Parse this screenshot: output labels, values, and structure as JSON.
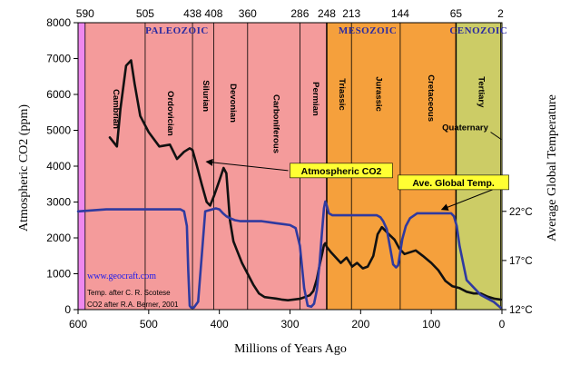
{
  "chart_data": {
    "type": "line",
    "xlabel": "Millions of Years Ago",
    "ylabel_left": "Atmospheric CO2 (ppm)",
    "ylabel_right": "Average Global Temperature",
    "xlim": [
      600,
      0
    ],
    "ylim_left": [
      0,
      8000
    ],
    "x_ticks": [
      "600",
      "500",
      "400",
      "300",
      "200",
      "100",
      "0"
    ],
    "y_ticks_left": [
      "0",
      "1000",
      "2000",
      "3000",
      "4000",
      "5000",
      "6000",
      "7000",
      "8000"
    ],
    "y_ticks_right": [
      {
        "label": "12°C",
        "temp": 12
      },
      {
        "label": "17°C",
        "temp": 17
      },
      {
        "label": "22°C",
        "temp": 22
      }
    ],
    "temp_axis": {
      "t_min": 12,
      "t_max": 22,
      "ppm_at_min": 0,
      "ppm_at_max": 2740
    },
    "period_boundaries": [
      {
        "label": "590",
        "x": 590
      },
      {
        "label": "505",
        "x": 505
      },
      {
        "label": "438",
        "x": 438
      },
      {
        "label": "408",
        "x": 408
      },
      {
        "label": "360",
        "x": 360
      },
      {
        "label": "286",
        "x": 286
      },
      {
        "label": "248",
        "x": 248
      },
      {
        "label": "213",
        "x": 213
      },
      {
        "label": "144",
        "x": 144
      },
      {
        "label": "65",
        "x": 65
      },
      {
        "label": "2",
        "x": 2
      }
    ],
    "eras": [
      {
        "name": "PALEOZOIC",
        "from": 590,
        "to": 248,
        "label_x": 460,
        "color": "#f49b9b"
      },
      {
        "name": "MESOZOIC",
        "from": 248,
        "to": 65,
        "label_x": 190,
        "color": "#f5a03c"
      },
      {
        "name": "CENOZOIC",
        "from": 65,
        "to": 0,
        "label_x": 33,
        "color": "#cccc66"
      }
    ],
    "pre_cambrian_color": "#ee88ee",
    "periods": [
      {
        "name": "Cambrian",
        "x": 550,
        "y": 6150
      },
      {
        "name": "Ordovician",
        "x": 473,
        "y": 6100
      },
      {
        "name": "Silurian",
        "x": 423,
        "y": 6400
      },
      {
        "name": "Devonian",
        "x": 384,
        "y": 6300
      },
      {
        "name": "Carboniferous",
        "x": 323,
        "y": 6000
      },
      {
        "name": "Permian",
        "x": 267,
        "y": 6350
      },
      {
        "name": "Triassic",
        "x": 230,
        "y": 6450
      },
      {
        "name": "Jurassic",
        "x": 178,
        "y": 6500
      },
      {
        "name": "Cretaceous",
        "x": 104,
        "y": 6550
      },
      {
        "name": "Tertiary",
        "x": 33,
        "y": 6500
      }
    ],
    "quaternary": {
      "label": "Quaternary",
      "x": 52,
      "y": 5000
    },
    "series": [
      {
        "name": "Atmospheric CO2",
        "axis": "left",
        "color": "#111111",
        "label_box": {
          "x": 300,
          "y": 4080,
          "arrow_to_x": 417,
          "arrow_to_y": 4120
        },
        "x": [
          555,
          545,
          540,
          532,
          525,
          520,
          512,
          500,
          485,
          470,
          460,
          450,
          442,
          438,
          433,
          425,
          418,
          413,
          407,
          400,
          394,
          390,
          385,
          380,
          375,
          368,
          360,
          352,
          344,
          336,
          328,
          320,
          312,
          303,
          295,
          286,
          279,
          272,
          267,
          262,
          258,
          254,
          252,
          250,
          248,
          242,
          235,
          228,
          220,
          212,
          205,
          197,
          190,
          182,
          176,
          170,
          165,
          160,
          152,
          145,
          138,
          130,
          122,
          112,
          100,
          90,
          80,
          70,
          60,
          50,
          40,
          30,
          20,
          10,
          2
        ],
        "values": [
          4800,
          4550,
          5600,
          6800,
          6950,
          6300,
          5400,
          4950,
          4550,
          4600,
          4200,
          4400,
          4500,
          4450,
          4100,
          3500,
          3000,
          2900,
          3200,
          3600,
          3950,
          3800,
          2500,
          1900,
          1650,
          1300,
          1000,
          700,
          450,
          350,
          330,
          310,
          280,
          260,
          280,
          300,
          350,
          400,
          520,
          850,
          1250,
          1600,
          1800,
          1850,
          1750,
          1600,
          1450,
          1300,
          1450,
          1200,
          1300,
          1150,
          1200,
          1500,
          2100,
          2300,
          2200,
          2100,
          1950,
          1700,
          1550,
          1600,
          1650,
          1500,
          1300,
          1100,
          800,
          650,
          600,
          500,
          450,
          450,
          360,
          300,
          280
        ]
      },
      {
        "name": "Ave. Global Temp.",
        "axis": "right",
        "color": "#2f3aa0",
        "label_box": {
          "x": 147,
          "y": 3750,
          "arrow_to_x": 84,
          "arrow_to_y": 2800
        },
        "x": [
          600,
          560,
          520,
          480,
          460,
          455,
          450,
          446,
          444,
          442,
          440,
          436,
          430,
          420,
          405,
          400,
          395,
          390,
          385,
          378,
          370,
          360,
          350,
          340,
          330,
          320,
          310,
          300,
          292,
          286,
          280,
          275,
          270,
          266,
          262,
          258,
          255,
          252,
          250,
          248,
          245,
          240,
          230,
          200,
          183,
          177,
          172,
          168,
          163,
          158,
          154,
          150,
          147,
          144,
          141,
          136,
          130,
          120,
          110,
          100,
          85,
          78,
          72,
          68,
          64,
          60,
          50,
          30,
          12,
          2
        ],
        "values": [
          22.0,
          22.2,
          22.2,
          22.2,
          22.2,
          22.2,
          22.0,
          20.5,
          16.0,
          12.4,
          12.2,
          12.2,
          12.8,
          22.0,
          22.3,
          22.2,
          21.8,
          21.5,
          21.3,
          21.1,
          21.0,
          21.0,
          21.0,
          21.0,
          20.9,
          20.8,
          20.7,
          20.6,
          20.3,
          18.5,
          14.2,
          12.4,
          12.3,
          12.6,
          14.0,
          16.8,
          19.6,
          22.3,
          23.0,
          22.6,
          21.8,
          21.6,
          21.6,
          21.6,
          21.6,
          21.6,
          21.4,
          21.0,
          20.2,
          18.2,
          16.6,
          16.3,
          16.5,
          17.8,
          19.2,
          20.5,
          21.3,
          21.8,
          21.8,
          21.8,
          21.8,
          21.8,
          21.8,
          21.5,
          20.5,
          18.5,
          15.0,
          13.5,
          12.8,
          12.2
        ]
      }
    ],
    "annotations": [
      {
        "text": "www.geocraft.com",
        "color": "#1a1aee"
      },
      {
        "text": "Temp. after C. R. Scotese",
        "color": "#000000"
      },
      {
        "text": "CO2 after R.A. Berner, 2001",
        "color": "#000000"
      }
    ],
    "grid": false,
    "legend": "inline labels"
  }
}
